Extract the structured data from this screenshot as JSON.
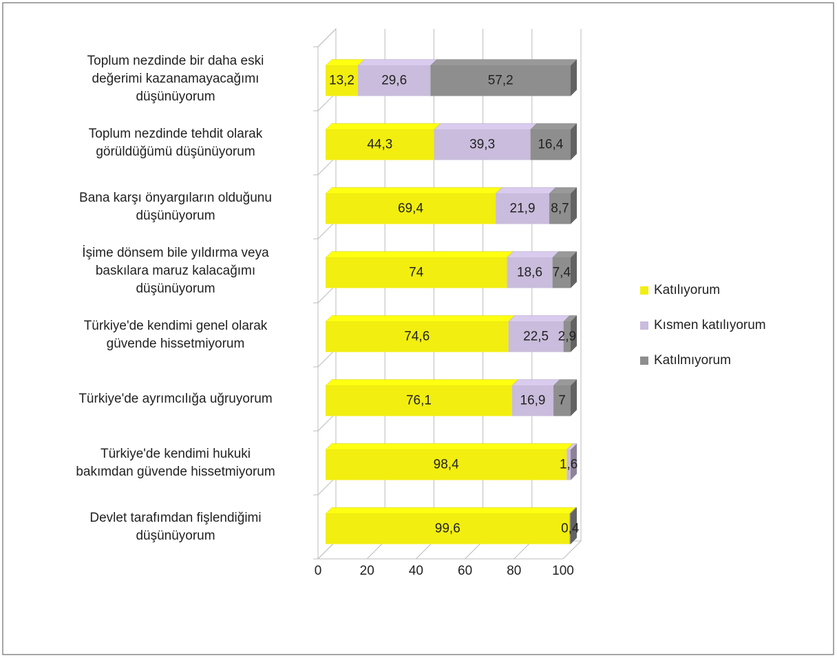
{
  "chart_data": {
    "type": "bar3d_stacked_horizontal",
    "categories": [
      "Toplum nezdinde bir daha eski\ndeğerimi kazanamayacağımı\ndüşünüyorum",
      "Toplum nezdinde tehdit olarak\ngörüldüğümü düşünüyorum",
      "Bana karşı önyargıların olduğunu\ndüşünüyorum",
      "İşime dönsem bile yıldırma veya\nbaskılara maruz kalacağımı\ndüşünüyorum",
      "Türkiye'de kendimi genel olarak\ngüvende hissetmiyorum",
      "Türkiye'de ayrımcılığa uğruyorum",
      "Türkiye'de kendimi hukuki\nbakımdan güvende hissetmiyorum",
      "Devlet tarafımdan fişlendiğimi\ndüşünüyorum"
    ],
    "series": [
      {
        "name": "Katılıyorum",
        "color": "#f2ee10",
        "values": [
          13.2,
          44.3,
          69.4,
          74,
          74.6,
          76.1,
          98.4,
          99.6
        ],
        "value_labels": [
          "13,2",
          "44,3",
          "69,4",
          "74",
          "74,6",
          "76,1",
          "98,4",
          "99,6"
        ]
      },
      {
        "name": "Kısmen katılıyorum",
        "color": "#c9bcdc",
        "values": [
          29.6,
          39.3,
          21.9,
          18.6,
          22.5,
          16.9,
          1.6,
          null
        ],
        "value_labels": [
          "29,6",
          "39,3",
          "21,9",
          "18,6",
          "22,5",
          "16,9",
          "1,6",
          null
        ]
      },
      {
        "name": "Katılmıyorum",
        "color": "#8e8e8e",
        "values": [
          57.2,
          16.4,
          8.7,
          7.4,
          2.9,
          7,
          null,
          0.4
        ],
        "value_labels": [
          "57,2",
          "16,4",
          "8,7",
          "7,4",
          "2,9",
          "7",
          null,
          "0,4"
        ]
      }
    ],
    "xlim": [
      0,
      100
    ],
    "xticks": [
      0,
      20,
      40,
      60,
      80,
      100
    ],
    "grid": true,
    "legend": "right"
  }
}
